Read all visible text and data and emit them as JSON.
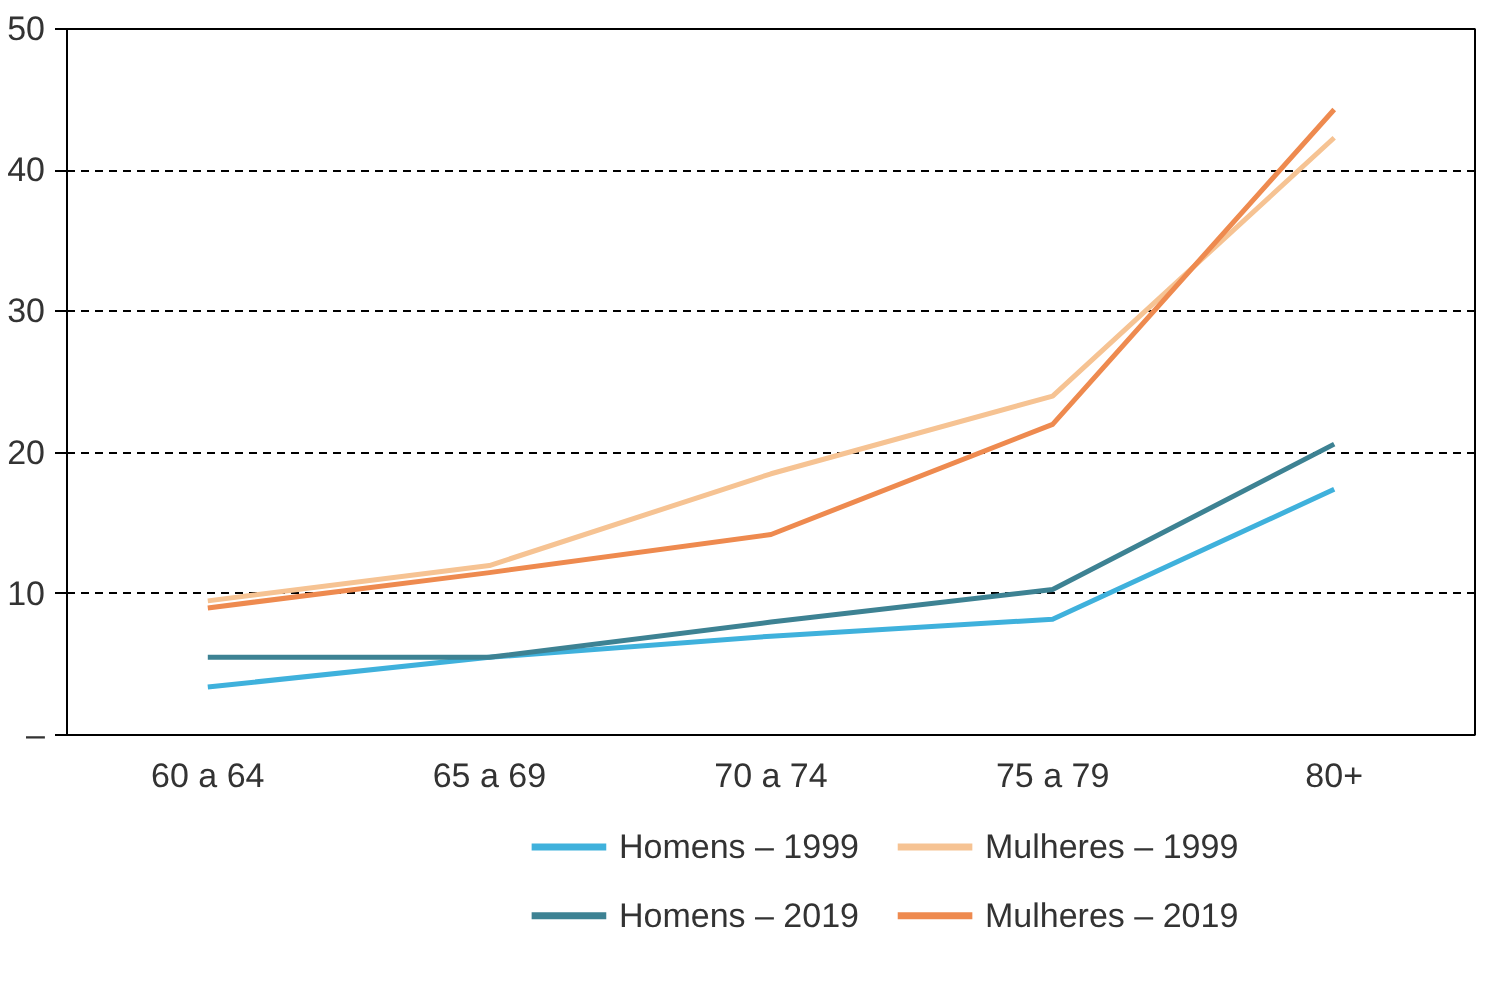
{
  "chart_data": {
    "type": "line",
    "categories": [
      "60 a 64",
      "65 a 69",
      "70 a 74",
      "75 a 79",
      "80+"
    ],
    "series": [
      {
        "name": "Homens – 1999",
        "color": "#3fb1dc",
        "values": [
          3.4,
          5.5,
          7,
          8.2,
          17.4
        ]
      },
      {
        "name": "Mulheres – 1999",
        "color": "#f6c393",
        "values": [
          9.5,
          12,
          18.5,
          24,
          42.3
        ]
      },
      {
        "name": "Homens – 2019",
        "color": "#3d8293",
        "values": [
          5.5,
          5.5,
          8,
          10.3,
          20.6
        ]
      },
      {
        "name": "Mulheres – 2019",
        "color": "#ee8a4f",
        "values": [
          9,
          11.5,
          14.2,
          22,
          44.3
        ]
      }
    ],
    "ylim": [
      0,
      50
    ],
    "yticks": [
      {
        "value": 0,
        "label": "–"
      },
      10,
      20,
      30,
      40,
      50
    ],
    "grid": "y",
    "legend": "bottom",
    "line_style": "solid",
    "marker": "none"
  }
}
